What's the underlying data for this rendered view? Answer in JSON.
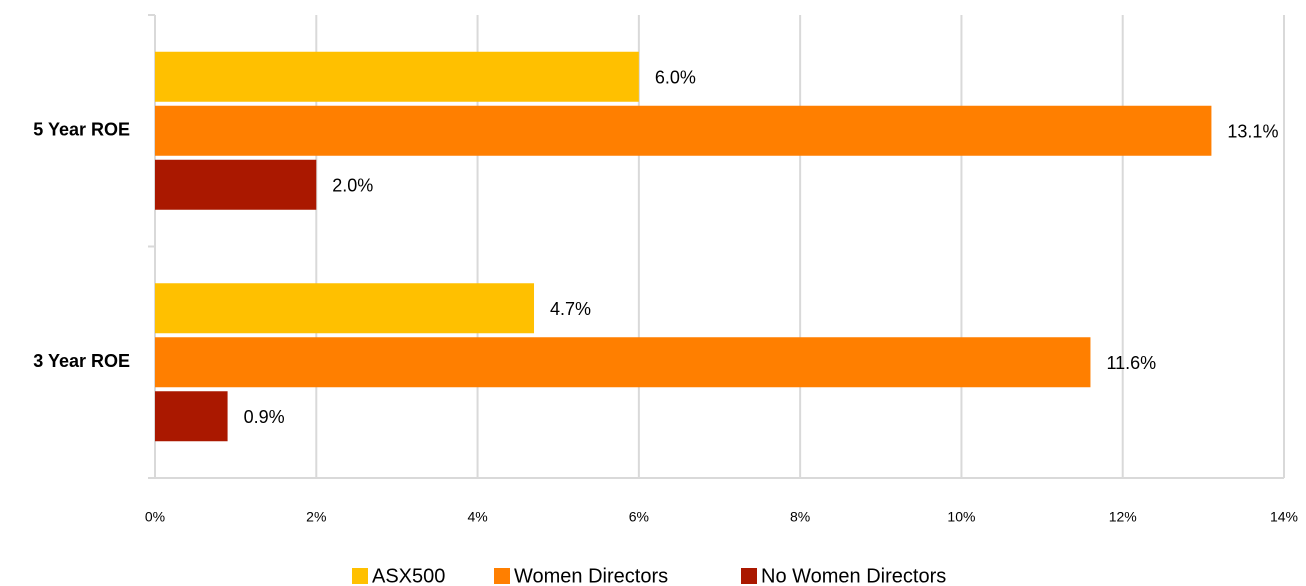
{
  "chart_data": {
    "type": "bar",
    "orientation": "horizontal",
    "categories": [
      "5 Year ROE",
      "3 Year ROE"
    ],
    "series": [
      {
        "name": "ASX500",
        "color": "#FFC000",
        "values": [
          6.0,
          4.7
        ],
        "value_labels": [
          "6.0%",
          "4.7%"
        ]
      },
      {
        "name": "Women Directors",
        "color": "#FF7F00",
        "values": [
          13.1,
          11.6
        ],
        "value_labels": [
          "13.1%",
          "11.6%"
        ]
      },
      {
        "name": "No Women Directors",
        "color": "#AA1800",
        "values": [
          2.0,
          0.9
        ],
        "value_labels": [
          "2.0%",
          "0.9%"
        ]
      }
    ],
    "xlim": [
      0,
      14
    ],
    "xticks": [
      {
        "value": 0,
        "label": "0%"
      },
      {
        "value": 2,
        "label": "2%"
      },
      {
        "value": 4,
        "label": "4%"
      },
      {
        "value": 6,
        "label": "6%"
      },
      {
        "value": 8,
        "label": "8%"
      },
      {
        "value": 10,
        "label": "10%"
      },
      {
        "value": 12,
        "label": "12%"
      },
      {
        "value": 14,
        "label": "14%"
      }
    ],
    "grid": true,
    "legend": "bottom"
  }
}
